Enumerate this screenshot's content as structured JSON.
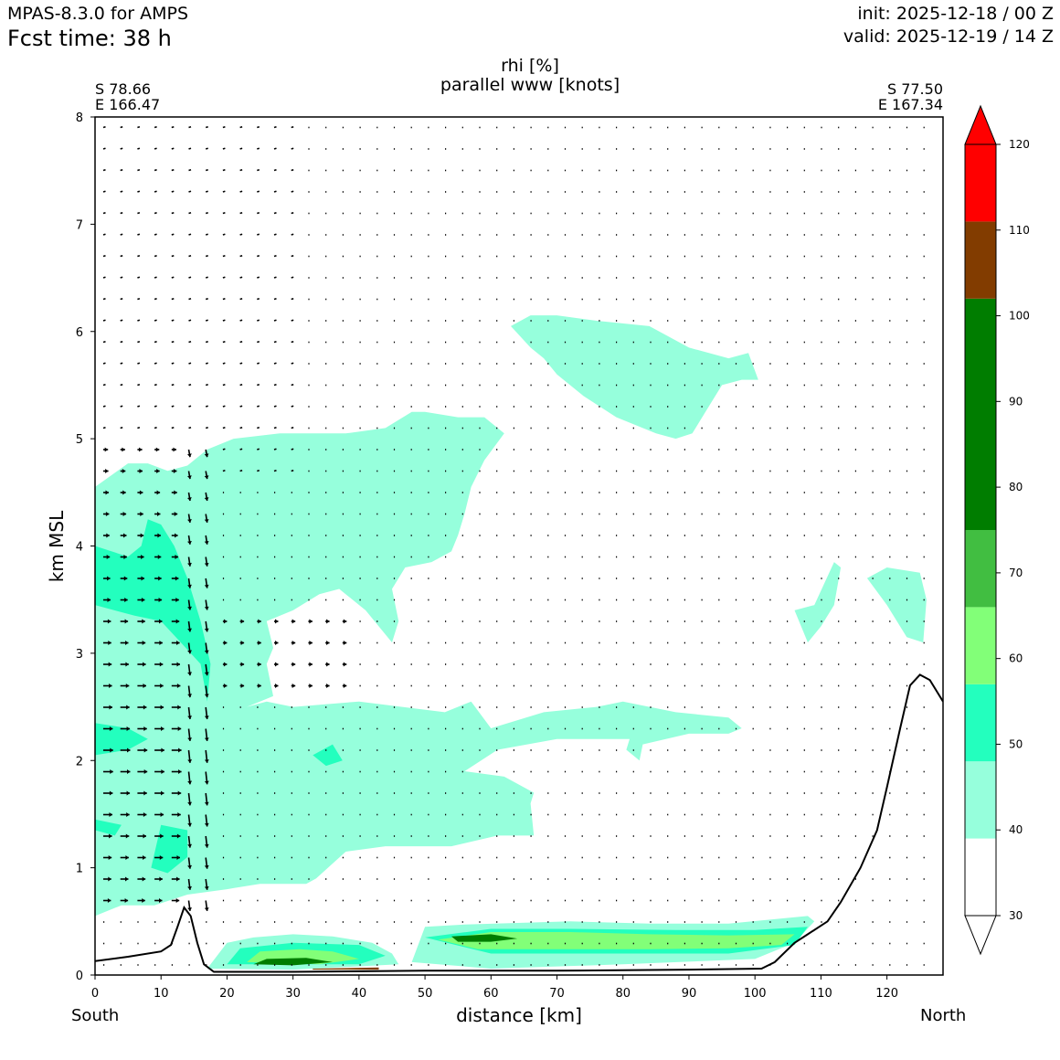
{
  "header": {
    "model": "MPAS-8.3.0 for AMPS",
    "fcst_time": "Fcst time:   38 h",
    "init": "init: 2025-12-18 / 00 Z",
    "valid": "valid: 2025-12-19 / 14 Z"
  },
  "cross_section": {
    "start_lat": "S 78.66",
    "start_lon": "E 166.47",
    "end_lat": "S 77.50",
    "end_lon": "E 167.34",
    "start_dir": "South",
    "end_dir": "North"
  },
  "chart_data": {
    "type": "cross-section",
    "title": "rhi [%]",
    "subtitle": "parallel www [knots]",
    "xlabel": "distance [km]",
    "ylabel": "km MSL",
    "xlim": [
      0,
      128.5
    ],
    "ylim": [
      0,
      8
    ],
    "x_ticks": [
      "0",
      "10",
      "20",
      "30",
      "40",
      "50",
      "60",
      "70",
      "80",
      "90",
      "100",
      "110",
      "120"
    ],
    "y_ticks": [
      "0",
      "1",
      "2",
      "3",
      "4",
      "5",
      "6",
      "7",
      "8"
    ],
    "colorbar": {
      "ticks": [
        "30",
        "40",
        "50",
        "60",
        "70",
        "80",
        "90",
        "100",
        "110",
        "120"
      ],
      "levels": [
        {
          "from": 30,
          "to": 39,
          "color": "#ffffff"
        },
        {
          "from": 39,
          "to": 48,
          "color": "#96ffdc"
        },
        {
          "from": 48,
          "to": 57,
          "color": "#23ffbe"
        },
        {
          "from": 57,
          "to": 66,
          "color": "#82ff78"
        },
        {
          "from": 66,
          "to": 75,
          "color": "#41be41"
        },
        {
          "from": 75,
          "to": 102,
          "color": "#007d00"
        },
        {
          "from": 102,
          "to": 111,
          "color": "#823c00"
        },
        {
          "from": 111,
          "to": 120,
          "color": "#ff0000"
        }
      ]
    },
    "terrain": [
      [
        0,
        0.13
      ],
      [
        5,
        0.17
      ],
      [
        10,
        0.22
      ],
      [
        11.5,
        0.28
      ],
      [
        12.5,
        0.45
      ],
      [
        13.5,
        0.63
      ],
      [
        14.5,
        0.55
      ],
      [
        15.5,
        0.3
      ],
      [
        16.5,
        0.1
      ],
      [
        18,
        0.03
      ],
      [
        30,
        0.03
      ],
      [
        50,
        0.04
      ],
      [
        70,
        0.04
      ],
      [
        90,
        0.05
      ],
      [
        101,
        0.06
      ],
      [
        103,
        0.12
      ],
      [
        106,
        0.3
      ],
      [
        108,
        0.38
      ],
      [
        111,
        0.5
      ],
      [
        113,
        0.68
      ],
      [
        116,
        1.0
      ],
      [
        118.5,
        1.35
      ],
      [
        120,
        1.75
      ],
      [
        122,
        2.3
      ],
      [
        123.5,
        2.7
      ],
      [
        125,
        2.8
      ],
      [
        126.5,
        2.75
      ],
      [
        128.5,
        2.55
      ]
    ],
    "rh_regions": [
      {
        "level": 40,
        "points": [
          [
            0,
            0.55
          ],
          [
            4,
            0.65
          ],
          [
            9,
            0.65
          ],
          [
            14,
            0.75
          ],
          [
            20,
            0.8
          ],
          [
            25,
            0.85
          ],
          [
            32,
            0.85
          ],
          [
            33.5,
            0.9
          ],
          [
            38,
            1.15
          ],
          [
            44,
            1.2
          ],
          [
            54,
            1.2
          ],
          [
            61,
            1.3
          ],
          [
            66.5,
            1.3
          ],
          [
            66,
            1.6
          ],
          [
            66.5,
            1.7
          ],
          [
            62,
            1.85
          ],
          [
            56,
            1.9
          ],
          [
            61,
            2.1
          ],
          [
            70,
            2.2
          ],
          [
            81,
            2.2
          ],
          [
            80.5,
            2.1
          ],
          [
            82.5,
            2.0
          ],
          [
            83,
            2.15
          ],
          [
            90,
            2.25
          ],
          [
            96,
            2.25
          ],
          [
            98,
            2.3
          ],
          [
            96,
            2.4
          ],
          [
            88,
            2.45
          ],
          [
            80,
            2.55
          ],
          [
            76,
            2.5
          ],
          [
            68,
            2.45
          ],
          [
            60,
            2.3
          ],
          [
            57,
            2.55
          ],
          [
            53,
            2.45
          ],
          [
            40,
            2.55
          ],
          [
            30,
            2.5
          ],
          [
            26,
            2.55
          ],
          [
            23,
            2.5
          ],
          [
            27,
            2.6
          ],
          [
            26,
            2.9
          ],
          [
            27,
            3.05
          ],
          [
            26,
            3.3
          ],
          [
            30,
            3.4
          ],
          [
            34,
            3.55
          ],
          [
            37,
            3.6
          ],
          [
            41,
            3.4
          ],
          [
            45,
            3.1
          ],
          [
            46,
            3.3
          ],
          [
            45,
            3.6
          ],
          [
            47,
            3.8
          ],
          [
            51,
            3.85
          ],
          [
            54,
            3.95
          ],
          [
            55,
            4.1
          ],
          [
            56,
            4.3
          ],
          [
            57,
            4.55
          ],
          [
            59,
            4.8
          ],
          [
            62,
            5.05
          ],
          [
            59,
            5.2
          ],
          [
            55,
            5.2
          ],
          [
            50,
            5.25
          ],
          [
            48,
            5.25
          ],
          [
            44,
            5.1
          ],
          [
            38,
            5.05
          ],
          [
            33,
            5.05
          ],
          [
            28,
            5.05
          ],
          [
            21,
            5.0
          ],
          [
            17,
            4.9
          ],
          [
            14,
            4.75
          ],
          [
            11,
            4.7
          ],
          [
            8,
            4.77
          ],
          [
            5,
            4.77
          ],
          [
            0,
            4.55
          ]
        ]
      },
      {
        "level": 40,
        "points": [
          [
            63,
            6.05
          ],
          [
            66,
            6.15
          ],
          [
            70,
            6.15
          ],
          [
            76,
            6.1
          ],
          [
            84,
            6.05
          ],
          [
            90,
            5.85
          ],
          [
            96,
            5.75
          ],
          [
            99,
            5.8
          ],
          [
            100.5,
            5.55
          ],
          [
            98,
            5.55
          ],
          [
            95,
            5.5
          ],
          [
            92,
            5.2
          ],
          [
            90.5,
            5.05
          ],
          [
            88,
            5.0
          ],
          [
            85,
            5.05
          ],
          [
            79,
            5.2
          ],
          [
            74,
            5.4
          ],
          [
            70,
            5.6
          ],
          [
            68,
            5.75
          ],
          [
            66,
            5.85
          ],
          [
            63,
            6.05
          ]
        ]
      },
      {
        "level": 40,
        "points": [
          [
            106,
            3.4
          ],
          [
            109,
            3.45
          ],
          [
            112,
            3.85
          ],
          [
            113,
            3.8
          ],
          [
            112,
            3.45
          ],
          [
            110,
            3.25
          ],
          [
            108,
            3.1
          ],
          [
            106,
            3.4
          ]
        ]
      },
      {
        "level": 40,
        "points": [
          [
            117,
            3.7
          ],
          [
            120,
            3.8
          ],
          [
            125,
            3.75
          ],
          [
            126,
            3.5
          ],
          [
            125.5,
            3.1
          ],
          [
            123,
            3.15
          ],
          [
            120,
            3.45
          ],
          [
            117,
            3.7
          ]
        ]
      },
      {
        "level": 40,
        "points": [
          [
            48,
            0.12
          ],
          [
            50,
            0.45
          ],
          [
            56,
            0.47
          ],
          [
            72,
            0.5
          ],
          [
            84,
            0.48
          ],
          [
            96,
            0.48
          ],
          [
            108,
            0.55
          ],
          [
            109,
            0.5
          ],
          [
            106,
            0.3
          ],
          [
            100,
            0.15
          ],
          [
            80,
            0.1
          ],
          [
            60,
            0.06
          ],
          [
            48,
            0.12
          ]
        ]
      },
      {
        "level": 40,
        "points": [
          [
            17,
            0.06
          ],
          [
            20,
            0.3
          ],
          [
            24,
            0.35
          ],
          [
            30,
            0.38
          ],
          [
            36,
            0.36
          ],
          [
            42,
            0.3
          ],
          [
            45,
            0.2
          ],
          [
            46,
            0.1
          ],
          [
            30,
            0.05
          ],
          [
            17,
            0.06
          ]
        ]
      },
      {
        "level": 50,
        "points": [
          [
            0,
            4.0
          ],
          [
            5,
            3.9
          ],
          [
            7,
            4.0
          ],
          [
            8,
            4.25
          ],
          [
            10,
            4.2
          ],
          [
            12,
            4.0
          ],
          [
            14,
            3.7
          ],
          [
            16,
            3.3
          ],
          [
            17.5,
            2.9
          ],
          [
            17,
            2.55
          ],
          [
            16,
            2.9
          ],
          [
            13,
            3.1
          ],
          [
            10,
            3.3
          ],
          [
            6,
            3.35
          ],
          [
            0,
            3.45
          ]
        ]
      },
      {
        "level": 50,
        "points": [
          [
            0,
            2.05
          ],
          [
            5,
            2.1
          ],
          [
            8,
            2.2
          ],
          [
            5,
            2.3
          ],
          [
            0,
            2.35
          ]
        ]
      },
      {
        "level": 50,
        "points": [
          [
            33,
            2.05
          ],
          [
            36,
            2.15
          ],
          [
            37.5,
            2.0
          ],
          [
            35,
            1.95
          ],
          [
            33,
            2.05
          ]
        ]
      },
      {
        "level": 50,
        "points": [
          [
            8.5,
            1.0
          ],
          [
            10,
            1.4
          ],
          [
            14,
            1.35
          ],
          [
            14,
            1.1
          ],
          [
            11,
            0.95
          ],
          [
            8.5,
            1.0
          ]
        ]
      },
      {
        "level": 50,
        "points": [
          [
            0,
            1.45
          ],
          [
            4,
            1.4
          ],
          [
            3,
            1.3
          ],
          [
            0,
            1.35
          ]
        ]
      },
      {
        "level": 50,
        "points": [
          [
            50,
            0.35
          ],
          [
            60,
            0.43
          ],
          [
            72,
            0.43
          ],
          [
            88,
            0.42
          ],
          [
            100,
            0.42
          ],
          [
            108,
            0.45
          ],
          [
            106,
            0.28
          ],
          [
            96,
            0.2
          ],
          [
            80,
            0.2
          ],
          [
            60,
            0.2
          ],
          [
            50,
            0.35
          ]
        ]
      },
      {
        "level": 50,
        "points": [
          [
            20,
            0.1
          ],
          [
            22,
            0.25
          ],
          [
            30,
            0.3
          ],
          [
            40,
            0.28
          ],
          [
            44,
            0.18
          ],
          [
            40,
            0.1
          ],
          [
            20,
            0.1
          ]
        ]
      },
      {
        "level": 60,
        "points": [
          [
            52,
            0.33
          ],
          [
            60,
            0.4
          ],
          [
            72,
            0.4
          ],
          [
            84,
            0.38
          ],
          [
            96,
            0.37
          ],
          [
            106,
            0.38
          ],
          [
            104,
            0.28
          ],
          [
            96,
            0.25
          ],
          [
            84,
            0.24
          ],
          [
            70,
            0.24
          ],
          [
            58,
            0.24
          ],
          [
            52,
            0.33
          ]
        ]
      },
      {
        "level": 60,
        "points": [
          [
            23,
            0.12
          ],
          [
            25,
            0.22
          ],
          [
            31,
            0.24
          ],
          [
            36,
            0.22
          ],
          [
            40,
            0.15
          ],
          [
            34,
            0.1
          ],
          [
            23,
            0.12
          ]
        ]
      },
      {
        "level": 80,
        "points": [
          [
            54,
            0.36
          ],
          [
            60,
            0.38
          ],
          [
            64,
            0.34
          ],
          [
            60,
            0.31
          ],
          [
            55,
            0.31
          ],
          [
            54,
            0.36
          ]
        ]
      },
      {
        "level": 80,
        "points": [
          [
            24,
            0.1
          ],
          [
            26,
            0.15
          ],
          [
            32,
            0.16
          ],
          [
            36,
            0.12
          ],
          [
            30,
            0.09
          ],
          [
            24,
            0.1
          ]
        ]
      },
      {
        "level": 110,
        "points": [
          [
            33,
            0.06
          ],
          [
            43,
            0.07
          ],
          [
            43,
            0.05
          ],
          [
            33,
            0.05
          ]
        ]
      }
    ]
  }
}
